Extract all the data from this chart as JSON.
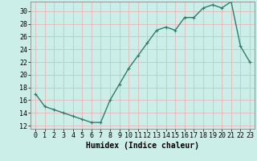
{
  "x": [
    0,
    1,
    2,
    3,
    4,
    5,
    6,
    7,
    8,
    9,
    10,
    11,
    12,
    13,
    14,
    15,
    16,
    17,
    18,
    19,
    20,
    21,
    22,
    23
  ],
  "y": [
    17,
    15,
    14.5,
    14,
    13.5,
    13,
    12.5,
    12.5,
    16,
    18.5,
    21,
    23,
    25,
    27,
    27.5,
    27,
    29,
    29,
    30.5,
    31,
    30.5,
    31.5,
    24.5,
    22
  ],
  "line_color": "#2e7d6e",
  "marker": "+",
  "marker_size": 3,
  "linewidth": 1.0,
  "xlabel": "Humidex (Indice chaleur)",
  "xlabel_fontsize": 7,
  "xlim": [
    -0.5,
    23.5
  ],
  "ylim": [
    11.5,
    31.5
  ],
  "yticks": [
    12,
    14,
    16,
    18,
    20,
    22,
    24,
    26,
    28,
    30
  ],
  "xtick_labels": [
    "0",
    "1",
    "2",
    "3",
    "4",
    "5",
    "6",
    "7",
    "8",
    "9",
    "10",
    "11",
    "12",
    "13",
    "14",
    "15",
    "16",
    "17",
    "18",
    "19",
    "20",
    "21",
    "22",
    "23"
  ],
  "bg_color": "#cceee8",
  "grid_color": "#e8b8b8",
  "tick_fontsize": 6,
  "spine_color": "#888888"
}
